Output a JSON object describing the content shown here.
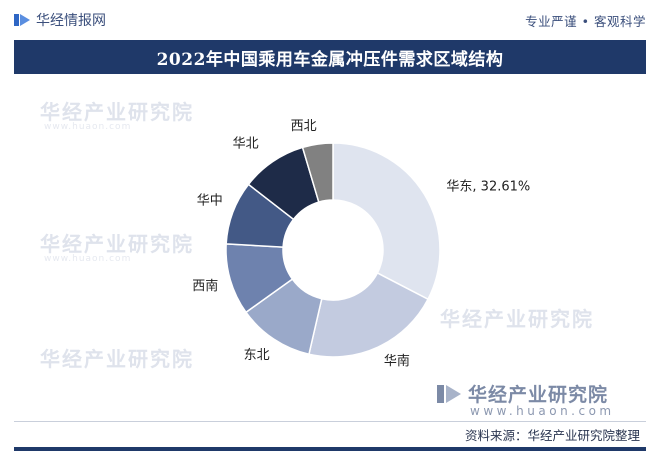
{
  "header": {
    "logo_text": "华经情报网",
    "tagline": "专业严谨 • 客观科学"
  },
  "watermark": {
    "text": "华经产业研究院",
    "url": "www.huaon.com"
  },
  "footer": {
    "source": "资料来源：华经产业研究院整理"
  },
  "colors": {
    "title_bar": "#1f3969",
    "brand": "#3b4f7c"
  },
  "chart_data": {
    "type": "pie",
    "title": "2022年中国乘用车金属冲压件需求区域结构",
    "donut": true,
    "start_angle_deg": 0,
    "direction": "clockwise",
    "slices": [
      {
        "label": "华东",
        "value": 32.61,
        "display": "华东, 32.61%",
        "color": "#dfe4ef"
      },
      {
        "label": "华南",
        "value": 21.0,
        "display": "华南",
        "color": "#c3cbe0"
      },
      {
        "label": "东北",
        "value": 11.5,
        "display": "东北",
        "color": "#9aa9c9"
      },
      {
        "label": "西南",
        "value": 10.8,
        "display": "西南",
        "color": "#6e82ae"
      },
      {
        "label": "华中",
        "value": 9.6,
        "display": "华中",
        "color": "#435986"
      },
      {
        "label": "华北",
        "value": 9.9,
        "display": "华北",
        "color": "#1e2b48"
      },
      {
        "label": "西北",
        "value": 4.59,
        "display": "西北",
        "color": "#818181"
      }
    ]
  }
}
